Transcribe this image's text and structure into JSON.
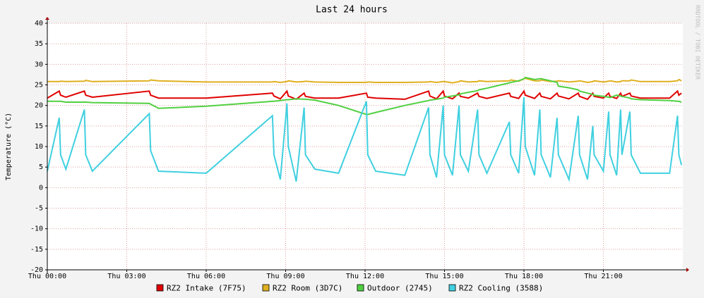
{
  "chart_data": {
    "type": "line",
    "title": "Last 24 hours",
    "y_label": "Temperature (°C)",
    "side_note": "RRDTOOL / TOBI OETIKER",
    "x": [
      0,
      0.45,
      0.5,
      0.7,
      1.4,
      1.45,
      1.7,
      3.85,
      3.9,
      4.2,
      6,
      8.5,
      8.56,
      8.8,
      9.05,
      9.1,
      9.4,
      9.7,
      9.75,
      10.1,
      11,
      12.05,
      12.1,
      12.4,
      13.5,
      14.4,
      14.45,
      14.7,
      14.95,
      15.0,
      15.3,
      15.55,
      15.6,
      15.9,
      16.25,
      16.3,
      16.6,
      17.45,
      17.5,
      17.8,
      18.0,
      18.05,
      18.4,
      18.6,
      18.65,
      19.0,
      19.25,
      19.3,
      19.7,
      20.05,
      20.1,
      20.4,
      20.6,
      20.65,
      21.0,
      21.2,
      21.25,
      21.5,
      21.65,
      21.7,
      22.0,
      22.05,
      22.4,
      23.5,
      23.8,
      23.85,
      23.95
    ],
    "series": [
      {
        "name": "RZ2 Intake (7F75)",
        "color": "#e00000",
        "values": [
          21.8,
          23.5,
          22.5,
          22,
          23.5,
          22.5,
          22,
          23.5,
          22.5,
          21.8,
          21.8,
          23,
          22.3,
          21.6,
          23.5,
          22.3,
          21.5,
          23,
          22.2,
          21.8,
          21.8,
          23,
          22,
          21.8,
          21.5,
          23.5,
          22.3,
          21.6,
          23.5,
          22.3,
          21.6,
          23,
          22.2,
          21.8,
          23,
          22.2,
          21.7,
          23,
          22.2,
          21.7,
          23.5,
          22.5,
          21.7,
          23,
          22.2,
          21.6,
          23,
          22.3,
          21.6,
          23,
          22.2,
          21.5,
          23,
          22.2,
          21.8,
          23,
          22.2,
          21.7,
          23,
          22.2,
          23,
          22.3,
          21.8,
          21.8,
          23.5,
          22.5,
          23
        ]
      },
      {
        "name": "RZ2 Room (3D7C)",
        "color": "#e0b020",
        "values": [
          25.8,
          25.8,
          25.9,
          25.8,
          25.9,
          26.1,
          25.8,
          26,
          26.2,
          26,
          25.7,
          25.7,
          25.8,
          25.6,
          25.8,
          26,
          25.7,
          25.8,
          25.9,
          25.7,
          25.6,
          25.6,
          25.7,
          25.6,
          25.6,
          25.7,
          25.8,
          25.6,
          25.8,
          25.8,
          25.5,
          25.8,
          26,
          25.7,
          25.8,
          26,
          25.8,
          26,
          26.2,
          25.9,
          26.5,
          26.6,
          26,
          26,
          26.2,
          25.8,
          25.9,
          26,
          25.7,
          25.9,
          26,
          25.6,
          25.8,
          26,
          25.7,
          25.9,
          26,
          25.7,
          25.8,
          26,
          26,
          26.2,
          25.8,
          25.8,
          26,
          26.3,
          26
        ]
      },
      {
        "name": "Outdoor (2745)",
        "color": "#50d040",
        "values": [
          21,
          21,
          21,
          20.8,
          20.8,
          20.8,
          20.7,
          20.5,
          20.3,
          19.3,
          19.8,
          21,
          21,
          21.2,
          21.4,
          21.4,
          21.6,
          21.5,
          21.5,
          21.3,
          20,
          17.8,
          17.8,
          18.3,
          20,
          21.2,
          21.3,
          21.5,
          21.8,
          22,
          22.3,
          22.6,
          22.8,
          23.2,
          23.6,
          23.8,
          24.2,
          25.5,
          25.6,
          26,
          26.5,
          26.8,
          26.3,
          26.5,
          26.5,
          26,
          25.6,
          24.7,
          24.3,
          23.8,
          23.5,
          23,
          22.7,
          22.5,
          22.2,
          22,
          21.9,
          22.5,
          22.3,
          22.2,
          21.8,
          21.6,
          21.4,
          21.2,
          21,
          21,
          20.8
        ]
      },
      {
        "name": "RZ2 Cooling (3588)",
        "color": "#40d0e0",
        "values": [
          4,
          17,
          8,
          4.5,
          19,
          8,
          4,
          18,
          9,
          4,
          3.5,
          17.5,
          8,
          2,
          20.5,
          10,
          1.5,
          19.5,
          8,
          4.5,
          3.5,
          21,
          8,
          4,
          3,
          19.5,
          8,
          2.5,
          20,
          8,
          3,
          20,
          8,
          4,
          19,
          8,
          3.5,
          16,
          8,
          3.5,
          22,
          10,
          3,
          19,
          8,
          2.5,
          17,
          8,
          2,
          17.5,
          8,
          2,
          15,
          8,
          4,
          18.5,
          8,
          3,
          19,
          8,
          18.5,
          8,
          3.5,
          3.5,
          17.5,
          8,
          5.5
        ]
      }
    ],
    "xlim": [
      0,
      24
    ],
    "ylim": [
      -20,
      40
    ],
    "xticks": [
      {
        "value": 0,
        "label": "Thu 00:00"
      },
      {
        "value": 3,
        "label": "Thu 03:00"
      },
      {
        "value": 6,
        "label": "Thu 06:00"
      },
      {
        "value": 9,
        "label": "Thu 09:00"
      },
      {
        "value": 12,
        "label": "Thu 12:00"
      },
      {
        "value": 15,
        "label": "Thu 15:00"
      },
      {
        "value": 18,
        "label": "Thu 18:00"
      },
      {
        "value": 21,
        "label": "Thu 21:00"
      }
    ],
    "yticks": [
      -20,
      -15,
      -10,
      -5,
      0,
      5,
      10,
      15,
      20,
      25,
      30,
      35,
      40
    ],
    "grid": true
  }
}
